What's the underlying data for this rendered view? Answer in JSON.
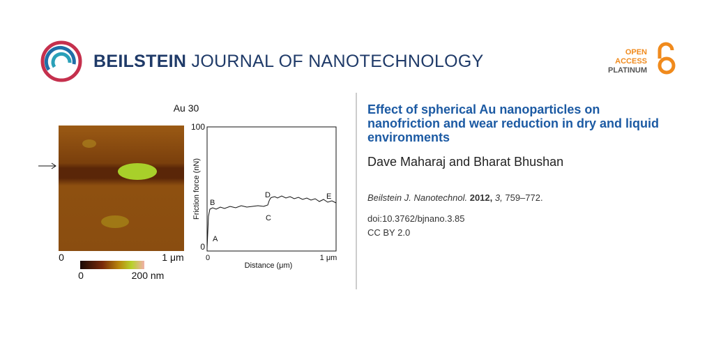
{
  "header": {
    "journal_bold": "BEILSTEIN",
    "journal_rest": "JOURNAL OF NANOTECHNOLOGY",
    "badge": {
      "line1": "OPEN",
      "line2": "ACCESS",
      "line3": "PLATINUM"
    }
  },
  "figure": {
    "title": "Au 30",
    "image": {
      "x_start": "0",
      "x_end": "1 μm",
      "scale_min": "0",
      "scale_max": "200 nm"
    },
    "plot": {
      "y_label": "Friction force (nN)",
      "y_top": "100",
      "y_bottom": "0",
      "x_label": "Distance (μm)",
      "x_start": "0",
      "x_end": "1 μm",
      "points": [
        "A",
        "B",
        "C",
        "D",
        "E"
      ]
    }
  },
  "article": {
    "title": "Effect of spherical Au nanoparticles on nanofriction and wear reduction in dry and liquid environments",
    "authors": "Dave Maharaj and Bharat Bhushan",
    "citation": {
      "journal": "Beilstein J. Nanotechnol.",
      "year": "2012,",
      "volume": "3,",
      "pages": "759–772."
    },
    "doi": "doi:10.3762/bjnano.3.85",
    "license": "CC BY 2.0"
  }
}
